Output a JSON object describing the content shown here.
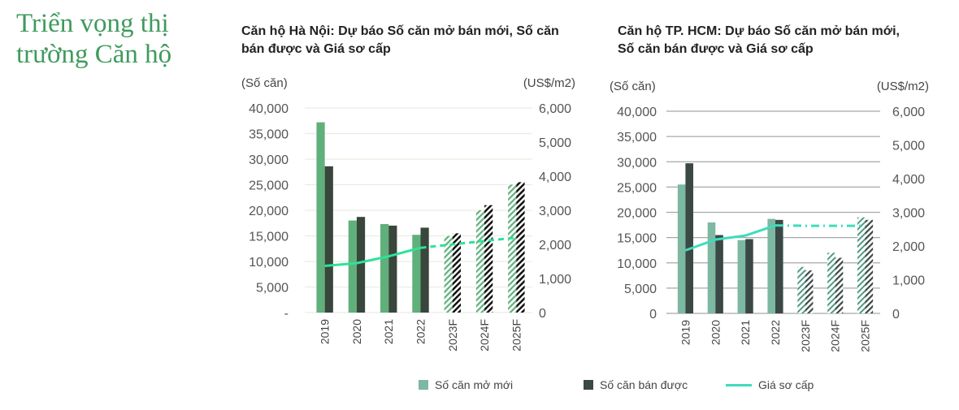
{
  "title": "Triển vọng thị trường Căn hộ",
  "legend": {
    "new": "Số căn mở mới",
    "sold": "Số căn bán được",
    "price": "Giá sơ cấp"
  },
  "colors": {
    "hn_new": "#5fb07a",
    "hn_sold": "#38463c",
    "hn_line": "#2de29a",
    "hcm_new": "#7db8a2",
    "hcm_sold": "#3a4846",
    "hcm_line": "#3fdcbc"
  },
  "chart_data": [
    {
      "type": "bar",
      "title": "Căn hộ Hà Nội: Dự báo Số căn mở bán mới, Số căn bán được và Giá sơ cấp",
      "ylabel": "(Số căn)",
      "y2label": "(US$/m2)",
      "ylim": [
        0,
        40000
      ],
      "y2lim": [
        0,
        6000
      ],
      "yticks": [
        "-",
        "5,000",
        "10,000",
        "15,000",
        "20,000",
        "25,000",
        "30,000",
        "35,000",
        "40,000"
      ],
      "y2ticks": [
        "0",
        "1,000",
        "2,000",
        "3,000",
        "4,000",
        "5,000",
        "6,000"
      ],
      "categories": [
        "2019",
        "2020",
        "2021",
        "2022",
        "2023F",
        "2024F",
        "2025F"
      ],
      "forecast_from": "2023F",
      "grid": true,
      "series": [
        {
          "name": "Số căn mở mới",
          "values": [
            37200,
            18000,
            17300,
            15200,
            15000,
            20000,
            25000
          ]
        },
        {
          "name": "Số căn bán được",
          "values": [
            28600,
            18700,
            17000,
            16600,
            15500,
            21000,
            25500
          ]
        },
        {
          "name": "Giá sơ cấp",
          "axis": "right",
          "type": "line",
          "values": [
            1370,
            1450,
            1650,
            1900,
            2000,
            2100,
            2200
          ]
        }
      ]
    },
    {
      "type": "bar",
      "title": "Căn hộ TP. HCM: Dự báo Số căn mở bán mới, Số căn bán được và Giá sơ cấp",
      "ylabel": "(Số căn)",
      "y2label": "(US$/m2)",
      "ylim": [
        0,
        40000
      ],
      "y2lim": [
        0,
        6000
      ],
      "yticks": [
        "0",
        "5,000",
        "10,000",
        "15,000",
        "20,000",
        "25,000",
        "30,000",
        "35,000",
        "40,000"
      ],
      "y2ticks": [
        "0",
        "1,000",
        "2,000",
        "3,000",
        "4,000",
        "5,000",
        "6,000"
      ],
      "categories": [
        "2019",
        "2020",
        "2021",
        "2022",
        "2023F",
        "2024F",
        "2025F"
      ],
      "forecast_from": "2023F",
      "grid": true,
      "series": [
        {
          "name": "Số căn mở mới",
          "values": [
            25500,
            18000,
            14500,
            18700,
            9200,
            12000,
            19000
          ]
        },
        {
          "name": "Số căn bán được",
          "values": [
            29700,
            15500,
            14700,
            18500,
            8500,
            11000,
            18500
          ]
        },
        {
          "name": "Giá sơ cấp",
          "axis": "right",
          "type": "line",
          "values": [
            1870,
            2190,
            2310,
            2610,
            2600,
            2600,
            2600
          ]
        }
      ]
    }
  ]
}
